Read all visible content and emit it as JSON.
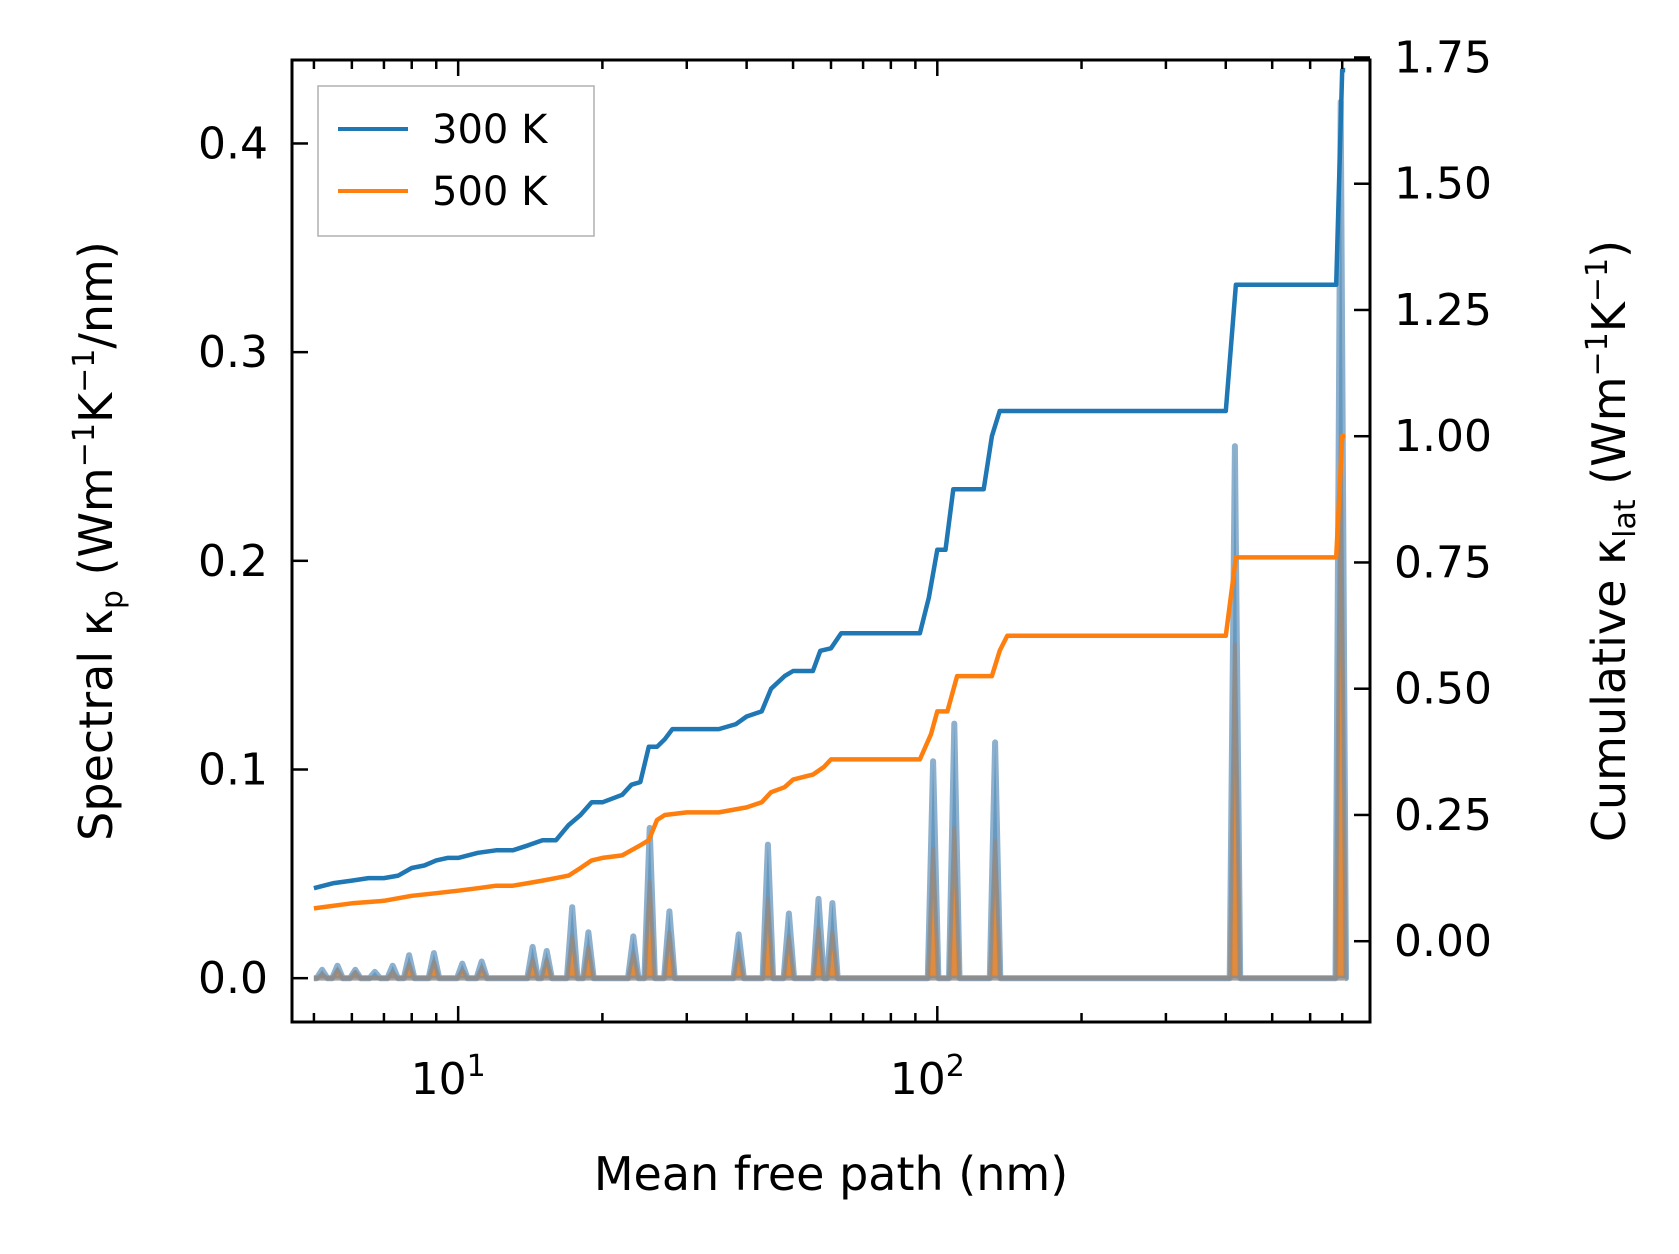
{
  "chart_data": {
    "type": "line",
    "xlabel": "Mean free path (nm)",
    "ylabel_left": {
      "main": "Spectral κ",
      "sub": "p",
      "unit_open": " (Wm",
      "sup1": "−1",
      "k": "K",
      "sup2": "−1",
      "unit_close": "/nm)"
    },
    "ylabel_right": {
      "main": "Cumulative κ",
      "sub": "lat",
      "unit_open": " (Wm",
      "sup1": "−1",
      "k": "K",
      "sup2": "−1",
      "unit_close": ")"
    },
    "xscale": "log",
    "xlim": [
      4.5,
      800
    ],
    "ylim_left": [
      -0.021,
      0.44
    ],
    "ylim_right": [
      -0.16,
      1.745
    ],
    "x_ticks": [
      {
        "value": 10,
        "base": "10",
        "exp": "1"
      },
      {
        "value": 100,
        "base": "10",
        "exp": "2"
      }
    ],
    "y_left_ticks": [
      {
        "value": 0.0,
        "label": "0.0"
      },
      {
        "value": 0.1,
        "label": "0.1"
      },
      {
        "value": 0.2,
        "label": "0.2"
      },
      {
        "value": 0.3,
        "label": "0.3"
      },
      {
        "value": 0.4,
        "label": "0.4"
      }
    ],
    "y_right_ticks": [
      {
        "value": 0.0,
        "label": "0.00"
      },
      {
        "value": 0.25,
        "label": "0.25"
      },
      {
        "value": 0.5,
        "label": "0.50"
      },
      {
        "value": 0.75,
        "label": "0.75"
      },
      {
        "value": 1.0,
        "label": "1.00"
      },
      {
        "value": 1.25,
        "label": "1.25"
      },
      {
        "value": 1.5,
        "label": "1.50"
      },
      {
        "value": 1.75,
        "label": "1.75"
      }
    ],
    "legend": {
      "position": "top-left",
      "entries": [
        {
          "label": "300 K",
          "color": "#1f77b4"
        },
        {
          "label": "500 K",
          "color": "#ff7f0e"
        }
      ]
    },
    "series": [
      {
        "name": "300 K cumulative",
        "axis": "right",
        "color": "#1f77b4",
        "x": [
          5,
          5.5,
          6,
          6.5,
          7,
          7.5,
          8,
          8.5,
          9,
          9.5,
          10,
          11,
          12,
          13,
          14,
          15,
          16,
          17,
          18,
          19,
          20,
          22,
          23,
          24,
          25,
          26,
          27,
          28,
          30,
          35,
          38,
          40,
          43,
          45,
          48,
          50,
          55,
          57,
          60,
          63,
          70,
          80,
          92,
          96,
          100,
          104,
          108,
          112,
          125,
          130,
          135,
          140,
          200,
          300,
          400,
          420,
          450,
          500,
          600,
          650,
          680,
          700,
          710
        ],
        "y": [
          0.105,
          0.115,
          0.12,
          0.125,
          0.125,
          0.13,
          0.145,
          0.15,
          0.16,
          0.165,
          0.165,
          0.175,
          0.18,
          0.18,
          0.19,
          0.2,
          0.2,
          0.23,
          0.25,
          0.275,
          0.275,
          0.29,
          0.31,
          0.315,
          0.385,
          0.385,
          0.4,
          0.42,
          0.42,
          0.42,
          0.43,
          0.445,
          0.455,
          0.5,
          0.525,
          0.535,
          0.535,
          0.575,
          0.58,
          0.61,
          0.61,
          0.61,
          0.61,
          0.68,
          0.775,
          0.775,
          0.895,
          0.895,
          0.895,
          1.0,
          1.05,
          1.05,
          1.05,
          1.05,
          1.05,
          1.3,
          1.3,
          1.3,
          1.3,
          1.3,
          1.3,
          1.725,
          1.725
        ]
      },
      {
        "name": "500 K cumulative",
        "axis": "right",
        "color": "#ff7f0e",
        "x": [
          5,
          6,
          7,
          8,
          9,
          10,
          11,
          12,
          13,
          14,
          15,
          16,
          17,
          18,
          19,
          20,
          22,
          24,
          25,
          26,
          27,
          30,
          35,
          40,
          43,
          45,
          48,
          50,
          55,
          58,
          60,
          63,
          70,
          80,
          92,
          97,
          100,
          105,
          110,
          120,
          130,
          135,
          140,
          200,
          300,
          400,
          420,
          450,
          500,
          600,
          650,
          680,
          700,
          710
        ],
        "y": [
          0.065,
          0.075,
          0.08,
          0.09,
          0.095,
          0.1,
          0.105,
          0.11,
          0.11,
          0.115,
          0.12,
          0.125,
          0.13,
          0.145,
          0.16,
          0.165,
          0.17,
          0.19,
          0.2,
          0.24,
          0.25,
          0.255,
          0.255,
          0.265,
          0.275,
          0.295,
          0.305,
          0.32,
          0.33,
          0.345,
          0.36,
          0.36,
          0.36,
          0.36,
          0.36,
          0.41,
          0.455,
          0.455,
          0.525,
          0.525,
          0.525,
          0.575,
          0.605,
          0.605,
          0.605,
          0.605,
          0.76,
          0.76,
          0.76,
          0.76,
          0.76,
          0.76,
          1.0,
          1.0
        ]
      }
    ],
    "spectral": {
      "axis": "left",
      "x_min": 5,
      "x_max": 710,
      "peaks_300K": [
        {
          "x": 5.2,
          "y": 0.004
        },
        {
          "x": 5.6,
          "y": 0.006
        },
        {
          "x": 6.1,
          "y": 0.004
        },
        {
          "x": 6.7,
          "y": 0.003
        },
        {
          "x": 7.3,
          "y": 0.006
        },
        {
          "x": 7.9,
          "y": 0.011
        },
        {
          "x": 8.9,
          "y": 0.012
        },
        {
          "x": 10.2,
          "y": 0.007
        },
        {
          "x": 11.2,
          "y": 0.008
        },
        {
          "x": 14.3,
          "y": 0.015
        },
        {
          "x": 15.3,
          "y": 0.013
        },
        {
          "x": 17.3,
          "y": 0.034
        },
        {
          "x": 18.7,
          "y": 0.022
        },
        {
          "x": 23.2,
          "y": 0.02
        },
        {
          "x": 25.1,
          "y": 0.072
        },
        {
          "x": 27.6,
          "y": 0.032
        },
        {
          "x": 38.5,
          "y": 0.021
        },
        {
          "x": 44.3,
          "y": 0.064
        },
        {
          "x": 49,
          "y": 0.031
        },
        {
          "x": 56.5,
          "y": 0.038
        },
        {
          "x": 60.4,
          "y": 0.036
        },
        {
          "x": 98,
          "y": 0.104
        },
        {
          "x": 108.5,
          "y": 0.122
        },
        {
          "x": 132,
          "y": 0.113
        },
        {
          "x": 418,
          "y": 0.255
        },
        {
          "x": 695,
          "y": 0.42
        }
      ],
      "peaks_500K": [
        {
          "x": 5.2,
          "y": 0.002
        },
        {
          "x": 5.6,
          "y": 0.004
        },
        {
          "x": 6.1,
          "y": 0.003
        },
        {
          "x": 7.3,
          "y": 0.003
        },
        {
          "x": 7.9,
          "y": 0.007
        },
        {
          "x": 8.9,
          "y": 0.008
        },
        {
          "x": 10.2,
          "y": 0.004
        },
        {
          "x": 11.2,
          "y": 0.005
        },
        {
          "x": 14.3,
          "y": 0.009
        },
        {
          "x": 15.3,
          "y": 0.009
        },
        {
          "x": 17.3,
          "y": 0.02
        },
        {
          "x": 18.7,
          "y": 0.015
        },
        {
          "x": 23.2,
          "y": 0.012
        },
        {
          "x": 25.1,
          "y": 0.046
        },
        {
          "x": 27.6,
          "y": 0.022
        },
        {
          "x": 38.5,
          "y": 0.013
        },
        {
          "x": 44.3,
          "y": 0.038
        },
        {
          "x": 49,
          "y": 0.02
        },
        {
          "x": 56.5,
          "y": 0.024
        },
        {
          "x": 60.4,
          "y": 0.022
        },
        {
          "x": 98,
          "y": 0.062
        },
        {
          "x": 108.5,
          "y": 0.072
        },
        {
          "x": 132,
          "y": 0.066
        },
        {
          "x": 418,
          "y": 0.16
        },
        {
          "x": 695,
          "y": 0.255
        }
      ]
    },
    "colors": {
      "blue": "#1f77b4",
      "orange": "#ff7f0e",
      "grey_fill": "#8c8c8c"
    }
  }
}
